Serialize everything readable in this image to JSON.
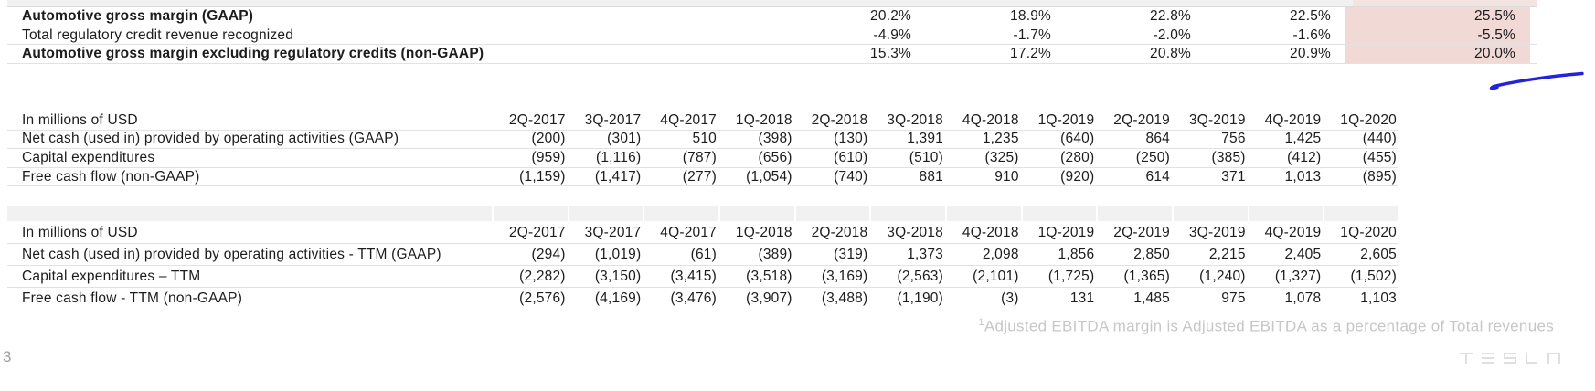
{
  "theme": {
    "highlight_pink": "#f1d9d6",
    "annotation_blue": "#2323de"
  },
  "margin_table": {
    "rows": [
      {
        "label": "Automotive gross margin (GAAP)",
        "values": [
          "20.2%",
          "18.9%",
          "22.8%",
          "22.5%",
          "25.5%"
        ]
      },
      {
        "label": "Total regulatory credit revenue recognized",
        "values": [
          "-4.9%",
          "-1.7%",
          "-2.0%",
          "-1.6%",
          "-5.5%"
        ]
      },
      {
        "label": "Automotive gross margin excluding regulatory credits (non-GAAP)",
        "values": [
          "15.3%",
          "17.2%",
          "20.8%",
          "20.9%",
          "20.0%"
        ]
      }
    ]
  },
  "quarters": [
    "2Q-2017",
    "3Q-2017",
    "4Q-2017",
    "1Q-2018",
    "2Q-2018",
    "3Q-2018",
    "4Q-2018",
    "1Q-2019",
    "2Q-2019",
    "3Q-2019",
    "4Q-2019",
    "1Q-2020"
  ],
  "cash_flow_table": {
    "unit_label": "In millions of USD",
    "rows": [
      {
        "label": "Net cash (used in) provided by operating activities (GAAP)",
        "values": [
          "(200)",
          "(301)",
          "510",
          "(398)",
          "(130)",
          "1,391",
          "1,235",
          "(640)",
          "864",
          "756",
          "1,425",
          "(440)"
        ]
      },
      {
        "label": "Capital expenditures",
        "values": [
          "(959)",
          "(1,116)",
          "(787)",
          "(656)",
          "(610)",
          "(510)",
          "(325)",
          "(280)",
          "(250)",
          "(385)",
          "(412)",
          "(455)"
        ]
      },
      {
        "label": "Free cash flow (non-GAAP)",
        "values": [
          "(1,159)",
          "(1,417)",
          "(277)",
          "(1,054)",
          "(740)",
          "881",
          "910",
          "(920)",
          "614",
          "371",
          "1,013",
          "(895)"
        ]
      }
    ]
  },
  "ttm_table": {
    "unit_label": "In millions of USD",
    "rows": [
      {
        "label": "Net cash (used in) provided by operating activities - TTM (GAAP)",
        "values": [
          "(294)",
          "(1,019)",
          "(61)",
          "(389)",
          "(319)",
          "1,373",
          "2,098",
          "1,856",
          "2,850",
          "2,215",
          "2,405",
          "2,605"
        ]
      },
      {
        "label": "Capital expenditures – TTM",
        "values": [
          "(2,282)",
          "(3,150)",
          "(3,415)",
          "(3,518)",
          "(3,169)",
          "(2,563)",
          "(2,101)",
          "(1,725)",
          "(1,365)",
          "(1,240)",
          "(1,327)",
          "(1,502)"
        ]
      },
      {
        "label": "Free cash flow - TTM (non-GAAP)",
        "values": [
          "(2,576)",
          "(4,169)",
          "(3,476)",
          "(3,907)",
          "(3,488)",
          "(1,190)",
          "(3)",
          "131",
          "1,485",
          "975",
          "1,078",
          "1,103"
        ]
      }
    ]
  },
  "footnote": {
    "sup": "1",
    "text": "Adjusted EBITDA margin is Adjusted EBITDA as a percentage of Total revenues"
  },
  "page_number": "3",
  "brand_wordmark": "TESLA"
}
